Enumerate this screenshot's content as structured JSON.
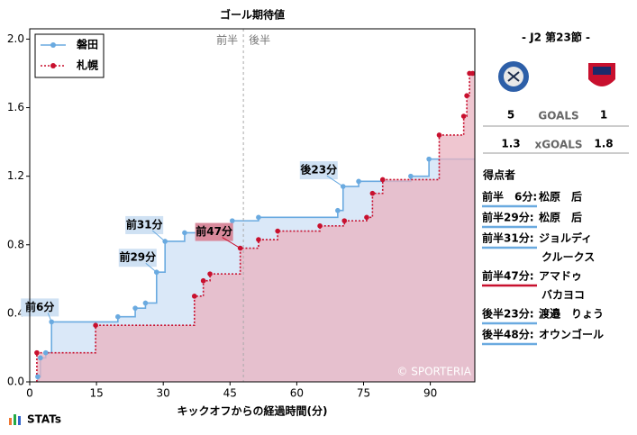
{
  "chart_data": {
    "type": "step-line",
    "title": "ゴール期待値",
    "x_label": "キックオフからの経過時間(分)",
    "xlim": [
      0,
      100
    ],
    "xticks": [
      0,
      15,
      30,
      45,
      60,
      75,
      90
    ],
    "ylim": [
      0,
      2.06
    ],
    "yticks": [
      {
        "value": 0,
        "label": "0.0"
      },
      {
        "value": 0.4,
        "label": "0.4"
      },
      {
        "value": 0.8,
        "label": "0.8"
      },
      {
        "value": 1.2,
        "label": "1.2"
      },
      {
        "value": 1.6,
        "label": "1.6"
      },
      {
        "value": 2,
        "label": "2.0"
      }
    ],
    "halftime": 48,
    "halftime_labels": [
      "前半",
      "後半"
    ],
    "legend": "upper-left",
    "watermark": "© SPORTERIA",
    "series": [
      {
        "name": "磐田",
        "color": "#6aaae0",
        "fill": "#d6e6f7",
        "x": [
          1.8,
          2.4,
          3.6,
          4.9,
          19.8,
          23.7,
          26,
          28.5,
          30.4,
          34.8,
          45.5,
          51.4,
          69.2,
          70.4,
          73.9,
          85.6,
          89.7
        ],
        "values": [
          0.03,
          0.14,
          0.17,
          0.35,
          0.38,
          0.43,
          0.46,
          0.64,
          0.82,
          0.87,
          0.94,
          0.96,
          1.0,
          1.14,
          1.17,
          1.2,
          1.3
        ],
        "annotations": [
          "前6分",
          "前29分",
          "前31分",
          "後23分"
        ]
      },
      {
        "name": "札幌",
        "color": "#c8102e",
        "fill": "#e9b3c0",
        "x": [
          1.6,
          14.8,
          37,
          39,
          40.5,
          47.3,
          51.4,
          55.7,
          65.2,
          70.7,
          75.7,
          77,
          79.3,
          92,
          97.5,
          98.2,
          98.8,
          99.5
        ],
        "values": [
          0.17,
          0.33,
          0.5,
          0.59,
          0.63,
          0.78,
          0.83,
          0.88,
          0.91,
          0.94,
          0.96,
          1.1,
          1.18,
          1.44,
          1.55,
          1.67,
          1.8,
          1.8
        ],
        "annotations": [
          "前47分"
        ]
      }
    ]
  },
  "match": {
    "title": "- J2 第23節 -",
    "home_goals": "5",
    "away_goals": "1",
    "goals_label": "GOALS",
    "home_xg": "1.3",
    "away_xg": "1.8",
    "xg_label": "xGOALS",
    "scorers_title": "得点者",
    "scorers": [
      {
        "time": "前半　6分:",
        "name": [
          "松原　后"
        ],
        "team": 0
      },
      {
        "time": "前半29分:",
        "name": [
          "松原　后"
        ],
        "team": 0
      },
      {
        "time": "前半31分:",
        "name": [
          "ジョルディ",
          "クルークス"
        ],
        "team": 0
      },
      {
        "time": "前半47分:",
        "name": [
          "アマドゥ",
          "バカヨコ"
        ],
        "team": 1
      },
      {
        "time": "後半23分:",
        "name": [
          "渡邉　りょう"
        ],
        "team": 0
      },
      {
        "time": "後半48分:",
        "name": [
          "オウンゴール"
        ],
        "team": 0
      }
    ]
  },
  "brand": "STATs"
}
